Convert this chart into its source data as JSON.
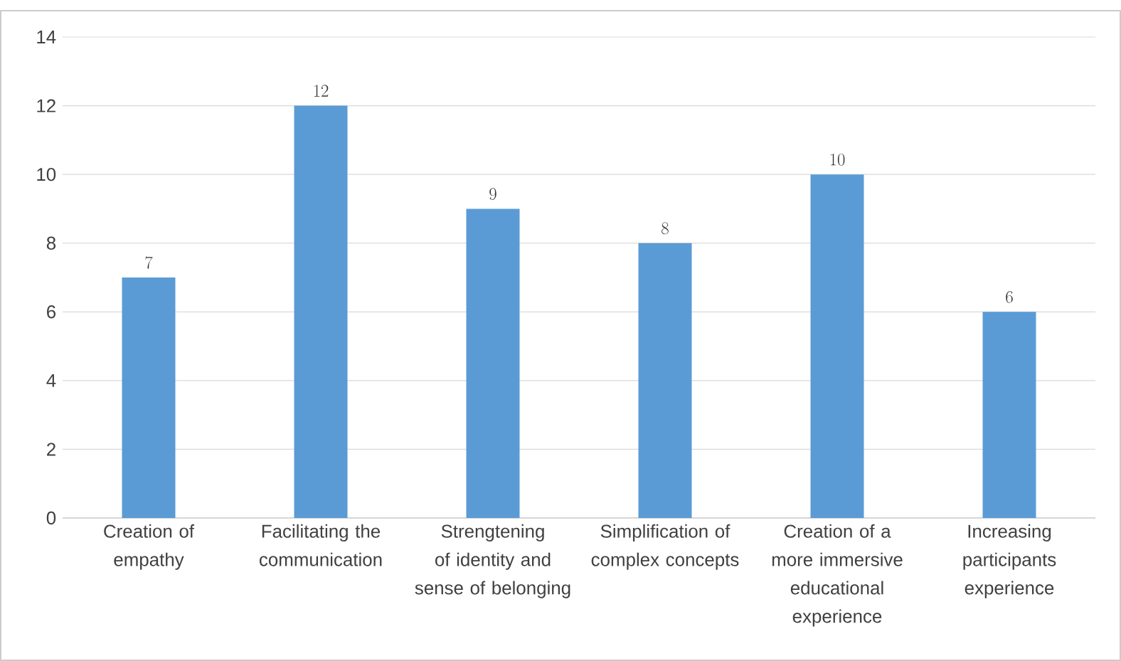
{
  "chart_data": {
    "type": "bar",
    "categories": [
      "Creation of empathy",
      "Facilitating the communication",
      "Strengtening of identity and sense of belonging",
      "Simplification of complex concepts",
      "Creation of a more immersive educational experience",
      "Increasing participants experience"
    ],
    "values": [
      7,
      12,
      9,
      8,
      10,
      6
    ],
    "color": "#5b9bd5",
    "ylim": [
      0,
      14
    ],
    "yticks": [
      0,
      2,
      4,
      6,
      8,
      10,
      12,
      14
    ],
    "grid": "y",
    "data_labels": true
  }
}
